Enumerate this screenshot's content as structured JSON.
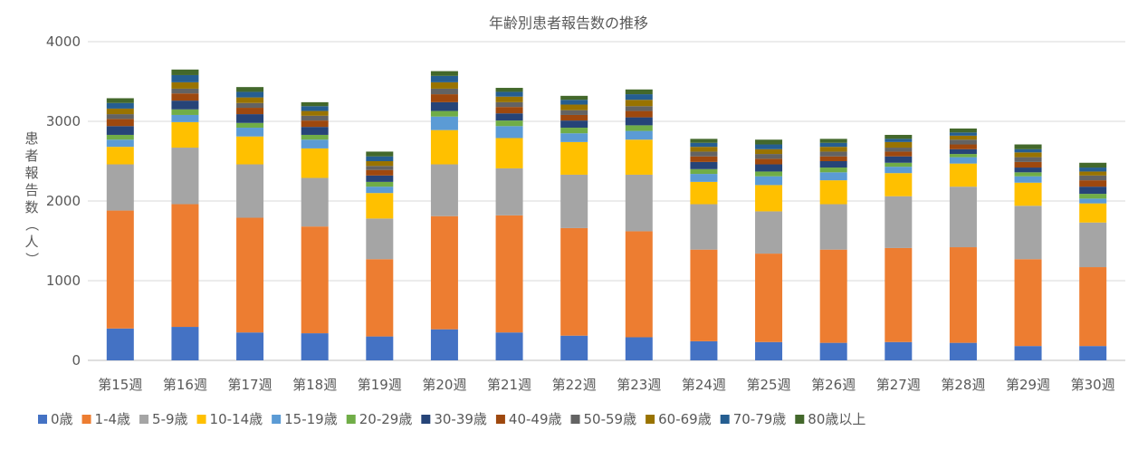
{
  "chart_data": {
    "type": "bar",
    "stacked": true,
    "title": "年齢別患者報告数の推移",
    "xlabel": "",
    "ylabel": "患者報告数（人）",
    "ylim": [
      0,
      4000
    ],
    "yticks": [
      0,
      1000,
      2000,
      3000,
      4000
    ],
    "grid": "horizontal",
    "legend_position": "bottom",
    "categories": [
      "第15週",
      "第16週",
      "第17週",
      "第18週",
      "第19週",
      "第20週",
      "第21週",
      "第22週",
      "第23週",
      "第24週",
      "第25週",
      "第26週",
      "第27週",
      "第28週",
      "第29週",
      "第30週"
    ],
    "series": [
      {
        "name": "0歳",
        "color": "#4472c4",
        "values": [
          400,
          420,
          350,
          340,
          300,
          390,
          350,
          310,
          290,
          240,
          230,
          220,
          230,
          220,
          180,
          180
        ]
      },
      {
        "name": "1-4歳",
        "color": "#ed7d31",
        "values": [
          1480,
          1540,
          1440,
          1340,
          970,
          1420,
          1470,
          1350,
          1330,
          1150,
          1110,
          1170,
          1180,
          1200,
          1090,
          990
        ]
      },
      {
        "name": "5-9歳",
        "color": "#a5a5a5",
        "values": [
          580,
          710,
          670,
          610,
          510,
          650,
          590,
          670,
          710,
          570,
          530,
          570,
          650,
          760,
          670,
          560
        ]
      },
      {
        "name": "10-14歳",
        "color": "#ffc000",
        "values": [
          220,
          320,
          350,
          370,
          320,
          430,
          380,
          410,
          440,
          280,
          330,
          300,
          290,
          290,
          290,
          240
        ]
      },
      {
        "name": "15-19歳",
        "color": "#5b9bd5",
        "values": [
          90,
          90,
          110,
          110,
          80,
          170,
          150,
          110,
          110,
          100,
          110,
          100,
          80,
          80,
          80,
          60
        ]
      },
      {
        "name": "20-29歳",
        "color": "#70ad47",
        "values": [
          60,
          70,
          60,
          60,
          60,
          70,
          70,
          70,
          70,
          60,
          60,
          60,
          50,
          40,
          50,
          60
        ]
      },
      {
        "name": "30-39歳",
        "color": "#264478",
        "values": [
          110,
          110,
          110,
          100,
          80,
          110,
          90,
          90,
          100,
          90,
          90,
          80,
          80,
          60,
          60,
          90
        ]
      },
      {
        "name": "40-49歳",
        "color": "#9e480e",
        "values": [
          90,
          90,
          80,
          80,
          70,
          100,
          80,
          70,
          80,
          70,
          70,
          60,
          60,
          60,
          70,
          80
        ]
      },
      {
        "name": "50-59歳",
        "color": "#636363",
        "values": [
          60,
          60,
          60,
          60,
          50,
          70,
          60,
          60,
          60,
          60,
          60,
          60,
          50,
          60,
          60,
          60
        ]
      },
      {
        "name": "60-69歳",
        "color": "#997300",
        "values": [
          70,
          80,
          70,
          60,
          60,
          80,
          70,
          70,
          80,
          60,
          60,
          60,
          70,
          50,
          60,
          50
        ]
      },
      {
        "name": "70-79歳",
        "color": "#255e91",
        "values": [
          70,
          90,
          70,
          60,
          60,
          80,
          60,
          60,
          70,
          50,
          60,
          50,
          40,
          40,
          40,
          50
        ]
      },
      {
        "name": "80歳以上",
        "color": "#43682b",
        "values": [
          60,
          70,
          60,
          50,
          60,
          60,
          50,
          50,
          60,
          50,
          60,
          50,
          50,
          50,
          60,
          60
        ]
      }
    ]
  }
}
